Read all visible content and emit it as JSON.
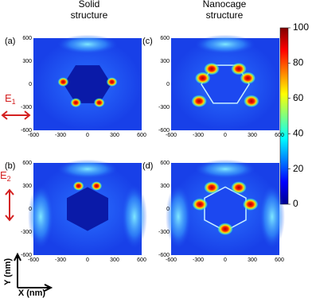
{
  "columns": [
    {
      "lines": [
        "Solid",
        "structure"
      ]
    },
    {
      "lines": [
        "Nanocage",
        "structure"
      ]
    }
  ],
  "panels": [
    {
      "label": "(a)"
    },
    {
      "label": "(c)"
    },
    {
      "label": "(b)"
    },
    {
      "label": "(d)"
    }
  ],
  "x_ticks": [
    -600,
    -300,
    0,
    300,
    600
  ],
  "y_ticks": [
    600,
    300,
    0,
    -300,
    -600
  ],
  "colorbar_ticks": [
    100,
    80,
    60,
    40,
    20,
    0
  ],
  "fields": [
    {
      "base": "E",
      "sub": "1"
    },
    {
      "base": "E",
      "sub": "2"
    }
  ],
  "axes": {
    "y": "Y (nm)",
    "x": "X (nm)"
  }
}
